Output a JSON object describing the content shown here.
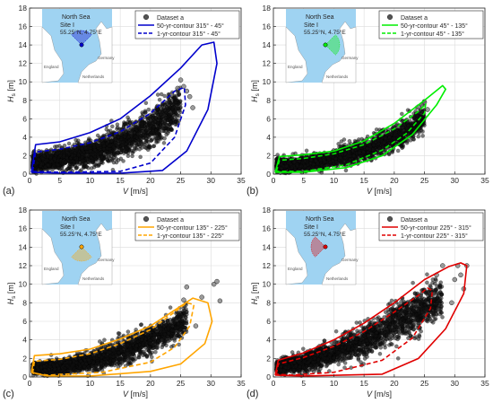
{
  "chart_data": [
    {
      "type": "scatter",
      "panel_label": "(a)",
      "xlabel": "V [m/s]",
      "ylabel": "Hs [m]",
      "ylabel_main": "H",
      "ylabel_sub": "s",
      "ylabel_unit": " [m]",
      "xlim": [
        0,
        35
      ],
      "ylim": [
        0,
        18
      ],
      "xticks": [
        0,
        5,
        10,
        15,
        20,
        25,
        30,
        35
      ],
      "yticks": [
        0,
        2,
        4,
        6,
        8,
        10,
        12,
        14,
        16,
        18
      ],
      "grid": true,
      "legend_position": "top-right",
      "color": "#0000cc",
      "legend": [
        "Dataset a",
        "50-yr-contour 315° - 45°",
        "1-yr-contour 315° - 45°"
      ],
      "inset": {
        "sea": "North Sea",
        "site": "Site I",
        "coords": "55.25°N, 4.75°E",
        "places": [
          "England",
          "Netherlands",
          "Germany"
        ],
        "sector_from": 315,
        "sector_to": 45
      },
      "contour_50yr": [
        [
          0.3,
          0.2
        ],
        [
          1.0,
          3.2
        ],
        [
          5.0,
          3.5
        ],
        [
          10.0,
          4.5
        ],
        [
          15.0,
          6.0
        ],
        [
          20.0,
          8.5
        ],
        [
          25.0,
          11.5
        ],
        [
          28.5,
          14.0
        ],
        [
          30.5,
          14.3
        ],
        [
          31.0,
          12.0
        ],
        [
          29.5,
          7.0
        ],
        [
          26.0,
          2.5
        ],
        [
          22.0,
          0.4
        ],
        [
          15.0,
          0.1
        ],
        [
          5.0,
          0.1
        ],
        [
          0.3,
          0.2
        ]
      ],
      "contour_1yr": [
        [
          0.5,
          0.3
        ],
        [
          1.0,
          2.4
        ],
        [
          5.0,
          2.7
        ],
        [
          10.0,
          3.4
        ],
        [
          15.0,
          4.6
        ],
        [
          20.0,
          6.6
        ],
        [
          24.0,
          9.0
        ],
        [
          25.6,
          9.4
        ],
        [
          25.8,
          7.5
        ],
        [
          24.0,
          4.0
        ],
        [
          20.0,
          1.2
        ],
        [
          15.0,
          0.3
        ],
        [
          5.0,
          0.2
        ],
        [
          0.5,
          0.3
        ]
      ],
      "cloud_center": [
        [
          0.5,
          1.2
        ],
        [
          5.0,
          1.6
        ],
        [
          10.0,
          2.3
        ],
        [
          15.0,
          3.4
        ],
        [
          20.0,
          5.0
        ],
        [
          23.0,
          6.4
        ],
        [
          25.0,
          7.8
        ]
      ],
      "cloud_spread": [
        [
          0.5,
          0.9
        ],
        [
          5.0,
          1.0
        ],
        [
          10.0,
          1.4
        ],
        [
          15.0,
          1.8
        ],
        [
          20.0,
          2.2
        ],
        [
          25.0,
          2.2
        ]
      ],
      "extreme_points": [
        [
          25.0,
          10.2
        ],
        [
          25.5,
          9.5
        ],
        [
          26.0,
          9.0
        ],
        [
          24.5,
          9.3
        ],
        [
          23.5,
          8.6
        ],
        [
          26.5,
          8.4
        ],
        [
          27.0,
          7.2
        ]
      ]
    },
    {
      "type": "scatter",
      "panel_label": "(b)",
      "xlabel": "V [m/s]",
      "ylabel": "Hs [m]",
      "ylabel_main": "H",
      "ylabel_sub": "s",
      "ylabel_unit": " [m]",
      "xlim": [
        0,
        35
      ],
      "ylim": [
        0,
        18
      ],
      "xticks": [
        0,
        5,
        10,
        15,
        20,
        25,
        30,
        35
      ],
      "yticks": [
        0,
        2,
        4,
        6,
        8,
        10,
        12,
        14,
        16,
        18
      ],
      "grid": true,
      "legend_position": "top-right",
      "color": "#00ee00",
      "legend": [
        "Dataset a",
        "50-yr-contour 45° - 135°",
        "1-yr-contour 45° - 135°"
      ],
      "inset": {
        "sea": "North Sea",
        "site": "Site I",
        "coords": "55.25°N, 4.75°E",
        "places": [
          "England",
          "Netherlands",
          "Germany"
        ],
        "sector_from": 45,
        "sector_to": 135
      },
      "contour_50yr": [
        [
          0.3,
          0.2
        ],
        [
          1.0,
          1.9
        ],
        [
          5.0,
          2.1
        ],
        [
          10.0,
          2.5
        ],
        [
          15.0,
          3.6
        ],
        [
          20.0,
          5.5
        ],
        [
          25.0,
          8.0
        ],
        [
          28.0,
          9.6
        ],
        [
          28.5,
          9.2
        ],
        [
          27.0,
          7.5
        ],
        [
          23.0,
          4.3
        ],
        [
          18.0,
          2.0
        ],
        [
          12.0,
          0.7
        ],
        [
          5.0,
          0.2
        ],
        [
          0.3,
          0.2
        ]
      ],
      "contour_1yr": [
        [
          0.5,
          0.3
        ],
        [
          1.0,
          1.5
        ],
        [
          5.0,
          1.7
        ],
        [
          10.0,
          2.2
        ],
        [
          15.0,
          3.2
        ],
        [
          20.0,
          4.9
        ],
        [
          24.0,
          6.8
        ],
        [
          25.2,
          7.6
        ],
        [
          25.0,
          6.6
        ],
        [
          22.0,
          4.4
        ],
        [
          18.0,
          2.6
        ],
        [
          12.0,
          1.0
        ],
        [
          5.0,
          0.3
        ],
        [
          0.5,
          0.3
        ]
      ],
      "cloud_center": [
        [
          0.5,
          1.0
        ],
        [
          5.0,
          1.1
        ],
        [
          10.0,
          1.7
        ],
        [
          15.0,
          2.6
        ],
        [
          20.0,
          3.9
        ],
        [
          23.0,
          5.0
        ],
        [
          25.0,
          6.4
        ]
      ],
      "cloud_spread": [
        [
          0.5,
          0.7
        ],
        [
          5.0,
          0.7
        ],
        [
          10.0,
          0.9
        ],
        [
          15.0,
          1.1
        ],
        [
          20.0,
          1.3
        ],
        [
          25.0,
          1.3
        ]
      ],
      "extreme_points": [
        [
          25.0,
          7.8
        ],
        [
          24.5,
          7.5
        ],
        [
          24.0,
          7.3
        ],
        [
          25.5,
          7.0
        ]
      ]
    },
    {
      "type": "scatter",
      "panel_label": "(c)",
      "xlabel": "V [m/s]",
      "ylabel": "Hs [m]",
      "ylabel_main": "H",
      "ylabel_sub": "s",
      "ylabel_unit": " [m]",
      "xlim": [
        0,
        35
      ],
      "ylim": [
        0,
        18
      ],
      "xticks": [
        0,
        5,
        10,
        15,
        20,
        25,
        30,
        35
      ],
      "yticks": [
        0,
        2,
        4,
        6,
        8,
        10,
        12,
        14,
        16,
        18
      ],
      "grid": true,
      "legend_position": "top-right",
      "color": "#ffa500",
      "legend": [
        "Dataset a",
        "50-yr-contour 135° - 225°",
        "1-yr-contour 135° - 225°"
      ],
      "inset": {
        "sea": "North Sea",
        "site": "Site I",
        "coords": "55.25°N, 4.75°E",
        "places": [
          "England",
          "Netherlands",
          "Germany"
        ],
        "sector_from": 135,
        "sector_to": 225
      },
      "contour_50yr": [
        [
          0.3,
          0.5
        ],
        [
          0.8,
          2.3
        ],
        [
          5.0,
          2.5
        ],
        [
          10.0,
          3.0
        ],
        [
          15.0,
          4.1
        ],
        [
          20.0,
          5.5
        ],
        [
          24.0,
          7.2
        ],
        [
          27.0,
          8.5
        ],
        [
          29.5,
          8.0
        ],
        [
          30.2,
          6.0
        ],
        [
          29.0,
          3.6
        ],
        [
          25.0,
          1.4
        ],
        [
          20.0,
          0.6
        ],
        [
          10.0,
          0.1
        ],
        [
          3.0,
          0.1
        ],
        [
          0.3,
          0.5
        ]
      ],
      "contour_1yr": [
        [
          0.5,
          0.4
        ],
        [
          0.8,
          1.7
        ],
        [
          5.0,
          1.9
        ],
        [
          10.0,
          2.5
        ],
        [
          15.0,
          3.6
        ],
        [
          20.0,
          5.1
        ],
        [
          24.0,
          7.0
        ],
        [
          26.0,
          8.0
        ],
        [
          27.2,
          7.8
        ],
        [
          26.5,
          5.5
        ],
        [
          24.0,
          3.2
        ],
        [
          20.0,
          1.6
        ],
        [
          12.0,
          0.5
        ],
        [
          3.0,
          0.2
        ],
        [
          0.5,
          0.4
        ]
      ],
      "cloud_center": [
        [
          0.5,
          0.9
        ],
        [
          5.0,
          1.1
        ],
        [
          10.0,
          1.7
        ],
        [
          15.0,
          2.7
        ],
        [
          20.0,
          4.0
        ],
        [
          23.0,
          5.0
        ],
        [
          26.0,
          6.3
        ]
      ],
      "cloud_spread": [
        [
          0.5,
          0.6
        ],
        [
          5.0,
          0.7
        ],
        [
          10.0,
          1.0
        ],
        [
          15.0,
          1.3
        ],
        [
          20.0,
          1.5
        ],
        [
          26.0,
          1.5
        ]
      ],
      "extreme_points": [
        [
          28.5,
          8.6
        ],
        [
          30.5,
          10.0
        ],
        [
          31.0,
          10.3
        ],
        [
          31.5,
          8.2
        ],
        [
          26.0,
          9.7
        ],
        [
          25.5,
          8.3
        ],
        [
          27.5,
          5.5
        ]
      ]
    },
    {
      "type": "scatter",
      "panel_label": "(d)",
      "xlabel": "V [m/s]",
      "ylabel": "Hs [m]",
      "ylabel_main": "H",
      "ylabel_sub": "s",
      "ylabel_unit": " [m]",
      "xlim": [
        0,
        35
      ],
      "ylim": [
        0,
        18
      ],
      "xticks": [
        0,
        5,
        10,
        15,
        20,
        25,
        30,
        35
      ],
      "yticks": [
        0,
        2,
        4,
        6,
        8,
        10,
        12,
        14,
        16,
        18
      ],
      "grid": true,
      "legend_position": "top-right",
      "color": "#e00000",
      "legend": [
        "Dataset a",
        "50-yr-contour 225° - 315°",
        "1-yr-contour 225° - 315°"
      ],
      "inset": {
        "sea": "North Sea",
        "site": "Site I",
        "coords": "55.25°N, 4.75°E",
        "places": [
          "England",
          "Netherlands",
          "Germany"
        ],
        "sector_from": 225,
        "sector_to": 315
      },
      "contour_50yr": [
        [
          0.3,
          0.2
        ],
        [
          0.8,
          1.8
        ],
        [
          5.0,
          2.6
        ],
        [
          10.0,
          4.0
        ],
        [
          15.0,
          5.8
        ],
        [
          20.0,
          8.0
        ],
        [
          25.0,
          10.5
        ],
        [
          29.0,
          11.9
        ],
        [
          31.0,
          12.3
        ],
        [
          32.0,
          12.0
        ],
        [
          31.5,
          9.0
        ],
        [
          28.5,
          5.2
        ],
        [
          24.0,
          2.0
        ],
        [
          18.0,
          0.3
        ],
        [
          5.0,
          0.1
        ],
        [
          0.3,
          0.2
        ]
      ],
      "contour_1yr": [
        [
          0.5,
          0.3
        ],
        [
          0.8,
          1.4
        ],
        [
          5.0,
          2.1
        ],
        [
          10.0,
          3.3
        ],
        [
          15.0,
          4.9
        ],
        [
          20.0,
          7.0
        ],
        [
          24.0,
          8.8
        ],
        [
          25.5,
          9.6
        ],
        [
          26.3,
          9.3
        ],
        [
          26.0,
          7.4
        ],
        [
          23.0,
          4.2
        ],
        [
          18.0,
          1.8
        ],
        [
          10.0,
          0.5
        ],
        [
          3.0,
          0.2
        ],
        [
          0.5,
          0.3
        ]
      ],
      "cloud_center": [
        [
          0.5,
          1.0
        ],
        [
          5.0,
          1.6
        ],
        [
          10.0,
          2.6
        ],
        [
          15.0,
          3.9
        ],
        [
          20.0,
          5.8
        ],
        [
          25.0,
          7.5
        ],
        [
          28.0,
          8.6
        ]
      ],
      "cloud_spread": [
        [
          0.5,
          0.7
        ],
        [
          5.0,
          1.0
        ],
        [
          10.0,
          1.3
        ],
        [
          15.0,
          1.7
        ],
        [
          20.0,
          2.1
        ],
        [
          28.0,
          2.3
        ]
      ],
      "extreme_points": [
        [
          30.0,
          10.5
        ],
        [
          31.0,
          11.0
        ],
        [
          32.0,
          12.0
        ],
        [
          30.5,
          12.0
        ],
        [
          28.0,
          12.0
        ],
        [
          27.0,
          11.0
        ],
        [
          29.5,
          8.0
        ],
        [
          31.5,
          9.5
        ]
      ]
    }
  ]
}
